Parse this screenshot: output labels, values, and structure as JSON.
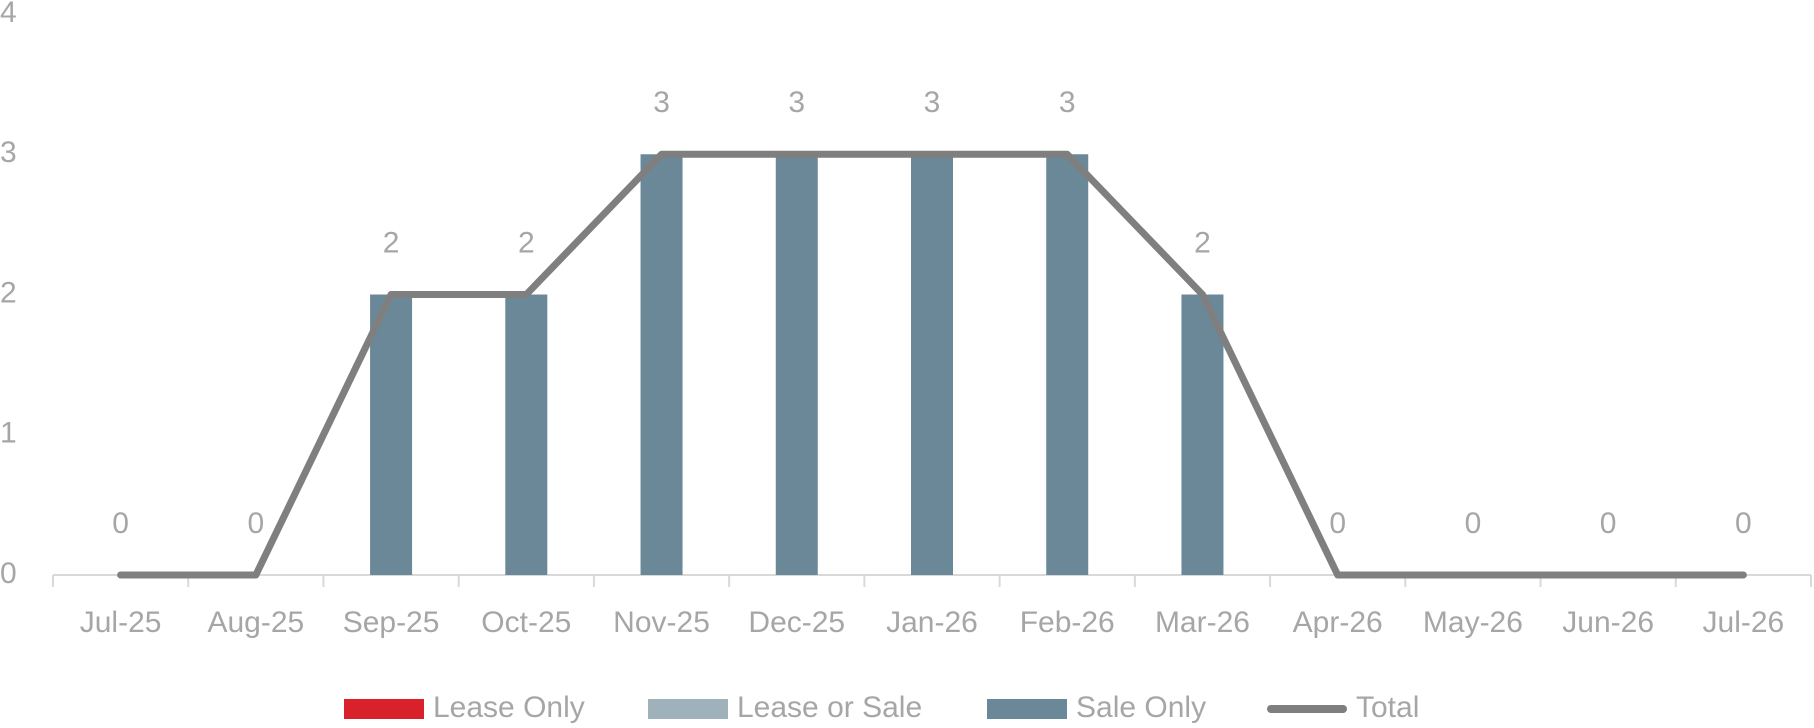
{
  "chart_data": {
    "type": "bar",
    "stacked": true,
    "categories": [
      "Jul-25",
      "Aug-25",
      "Sep-25",
      "Oct-25",
      "Nov-25",
      "Dec-25",
      "Jan-26",
      "Feb-26",
      "Mar-26",
      "Apr-26",
      "May-26",
      "Jun-26",
      "Jul-26"
    ],
    "series": [
      {
        "name": "Lease Only",
        "color": "#d9212c",
        "values": [
          0,
          0,
          0,
          0,
          0,
          0,
          0,
          0,
          0,
          0,
          0,
          0,
          0
        ]
      },
      {
        "name": "Lease or Sale",
        "color": "#9fb1ba",
        "values": [
          0,
          0,
          0,
          0,
          0,
          0,
          0,
          0,
          0,
          0,
          0,
          0,
          0
        ]
      },
      {
        "name": "Sale Only",
        "color": "#6b8899",
        "values": [
          0,
          0,
          2,
          2,
          3,
          3,
          3,
          3,
          2,
          0,
          0,
          0,
          0
        ]
      },
      {
        "name": "Total",
        "type": "line",
        "color": "#7f7f7f",
        "values": [
          0,
          0,
          2,
          2,
          3,
          3,
          3,
          3,
          2,
          0,
          0,
          0,
          0
        ]
      }
    ],
    "ylim": [
      0,
      4
    ],
    "yticks": [
      0,
      1,
      2,
      3,
      4
    ],
    "grid": false,
    "legend": "bottom"
  }
}
